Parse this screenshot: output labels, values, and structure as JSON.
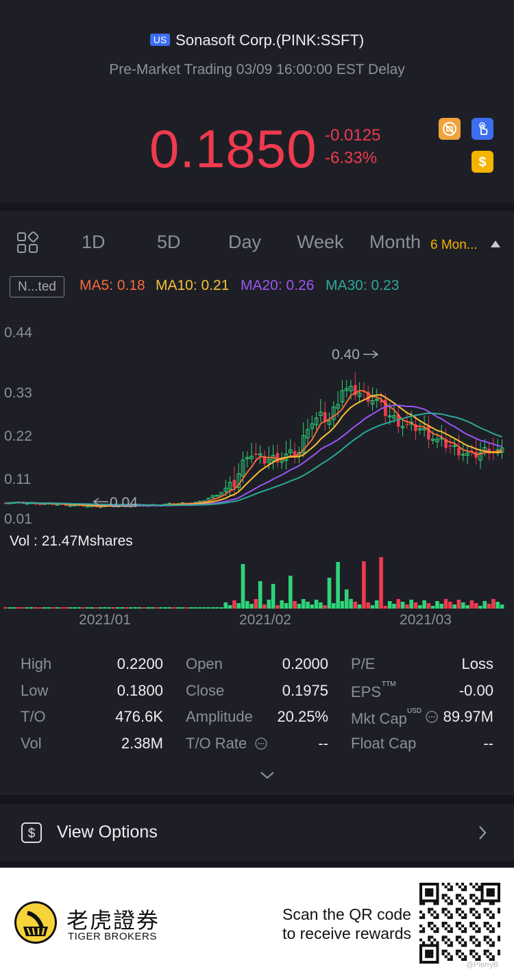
{
  "header": {
    "market_badge": "US",
    "title": "Sonasoft Corp.(PINK:SSFT)",
    "subtitle": "Pre-Market Trading 03/09 16:00:00 EST Delay",
    "price": "0.1850",
    "change": "-0.0125",
    "change_pct": "-6.33%",
    "icons": [
      "no-pdt-icon",
      "touch-icon",
      "dollar-icon"
    ]
  },
  "tabs": {
    "items": [
      "1D",
      "5D",
      "Day",
      "Week",
      "Month"
    ],
    "period": "6 Mon...",
    "adjust_label": "N...ted"
  },
  "ma_legend": [
    {
      "label": "MA5: 0.18",
      "color": "#f56a3b"
    },
    {
      "label": "MA10: 0.21",
      "color": "#f7c234"
    },
    {
      "label": "MA20: 0.26",
      "color": "#9b55f5"
    },
    {
      "label": "MA30: 0.23",
      "color": "#2ca89a"
    }
  ],
  "chart_data": {
    "type": "candlestick",
    "y_ticks": [
      "0.44",
      "0.33",
      "0.22",
      "0.11",
      "0.01"
    ],
    "x_ticks": [
      "2021/01",
      "2021/02",
      "2021/03"
    ],
    "max_annotation": "0.40",
    "min_annotation": "0.04",
    "volume_label": "Vol  : 21.47Mshares",
    "colors": {
      "up": "#2ed47a",
      "down": "#f03a4f"
    }
  },
  "stats": {
    "col1": [
      {
        "label": "High",
        "value": "0.2200"
      },
      {
        "label": "Low",
        "value": "0.1800"
      },
      {
        "label": "T/O",
        "value": "476.6K"
      },
      {
        "label": "Vol",
        "value": "2.38M"
      }
    ],
    "col2": [
      {
        "label": "Open",
        "value": "0.2000"
      },
      {
        "label": "Close",
        "value": "0.1975"
      },
      {
        "label": "Amplitude",
        "value": "20.25%"
      },
      {
        "label": "T/O Rate",
        "value": "--"
      }
    ],
    "col3": [
      {
        "label": "P/E",
        "value": "Loss"
      },
      {
        "label": "EPS",
        "sup": "TTM",
        "value": "-0.00"
      },
      {
        "label": "Mkt Cap",
        "sup": "USD",
        "value": "89.97M"
      },
      {
        "label": "Float Cap",
        "value": "--"
      }
    ]
  },
  "options": {
    "label": "View Options"
  },
  "footer": {
    "brand_cn": "老虎證券",
    "brand_en": "TIGER BROKERS",
    "scan_line1": "Scan the QR code",
    "scan_line2": "to receive rewards",
    "watermark": "@PierryB"
  }
}
